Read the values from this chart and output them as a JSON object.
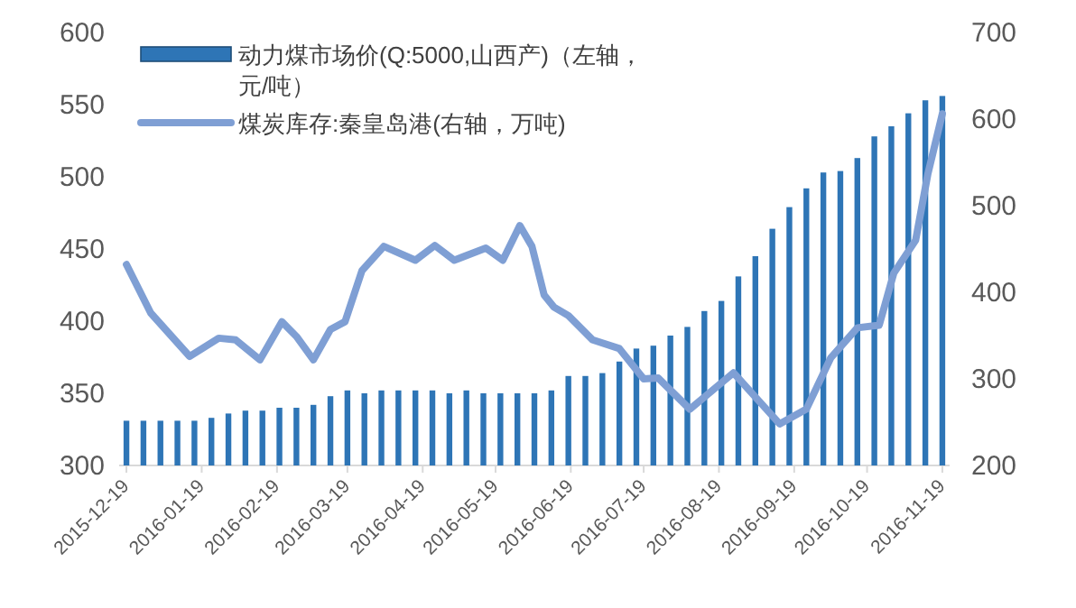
{
  "chart_data": {
    "type": "bar",
    "x": [
      "2015-12-19",
      "2015-12-26",
      "2016-01-02",
      "2016-01-09",
      "2016-01-16",
      "2016-01-23",
      "2016-01-30",
      "2016-02-06",
      "2016-02-13",
      "2016-02-20",
      "2016-02-27",
      "2016-03-05",
      "2016-03-12",
      "2016-03-19",
      "2016-03-26",
      "2016-04-02",
      "2016-04-09",
      "2016-04-16",
      "2016-04-23",
      "2016-04-30",
      "2016-05-07",
      "2016-05-14",
      "2016-05-21",
      "2016-05-28",
      "2016-06-04",
      "2016-06-11",
      "2016-06-18",
      "2016-06-25",
      "2016-07-02",
      "2016-07-09",
      "2016-07-16",
      "2016-07-23",
      "2016-07-30",
      "2016-08-06",
      "2016-08-13",
      "2016-08-20",
      "2016-08-27",
      "2016-09-03",
      "2016-09-10",
      "2016-09-17",
      "2016-09-24",
      "2016-10-01",
      "2016-10-08",
      "2016-10-15",
      "2016-10-22",
      "2016-10-29",
      "2016-11-05",
      "2016-11-12",
      "2016-11-19"
    ],
    "series": [
      {
        "name": "动力煤市场价(Q:5000,山西产)（左轴，元/吨）",
        "color": "#2e75b6",
        "values": [
          331,
          331,
          331,
          331,
          331,
          333,
          336,
          338,
          338,
          340,
          340,
          342,
          348,
          352,
          350,
          352,
          352,
          352,
          352,
          350,
          352,
          350,
          350,
          350,
          350,
          352,
          362,
          362,
          364,
          372,
          381,
          383,
          390,
          396,
          407,
          414,
          431,
          445,
          464,
          479,
          492,
          503,
          504,
          513,
          528,
          535,
          544,
          553,
          556
        ]
      },
      {
        "name": "煤炭库存:秦皇岛港(右轴，万吨)",
        "type": "line",
        "axis": "y2",
        "color": "#7f9fd4",
        "x": [
          "2015-12-19",
          "2015-12-29",
          "2016-01-14",
          "2016-01-26",
          "2016-02-02",
          "2016-02-12",
          "2016-02-21",
          "2016-02-27",
          "2016-03-05",
          "2016-03-12",
          "2016-03-18",
          "2016-03-25",
          "2016-04-03",
          "2016-04-16",
          "2016-04-24",
          "2016-05-02",
          "2016-05-15",
          "2016-05-22",
          "2016-05-29",
          "2016-06-03",
          "2016-06-08",
          "2016-06-12",
          "2016-06-18",
          "2016-06-28",
          "2016-07-09",
          "2016-07-19",
          "2016-07-25",
          "2016-08-07",
          "2016-08-25",
          "2016-09-03",
          "2016-09-13",
          "2016-09-24",
          "2016-10-04",
          "2016-10-15",
          "2016-10-24",
          "2016-10-30",
          "2016-11-08",
          "2016-11-13",
          "2016-11-19"
        ],
        "values": [
          432,
          376,
          326,
          347,
          345,
          322,
          366,
          349,
          322,
          357,
          366,
          425,
          453,
          437,
          454,
          437,
          451,
          437,
          477,
          453,
          397,
          383,
          373,
          345,
          335,
          300,
          301,
          265,
          307,
          279,
          248,
          265,
          324,
          359,
          362,
          422,
          460,
          536,
          606
        ]
      }
    ],
    "xlim": [
      "2015-12-16",
      "2016-11-22"
    ],
    "xticks": [
      {
        "value": "2015-12-19",
        "label": "2015-12-19"
      },
      {
        "value": "2016-01-19",
        "label": "2016-01-19"
      },
      {
        "value": "2016-02-19",
        "label": "2016-02-19"
      },
      {
        "value": "2016-03-19",
        "label": "2016-03-19"
      },
      {
        "value": "2016-04-19",
        "label": "2016-04-19"
      },
      {
        "value": "2016-05-19",
        "label": "2016-05-19"
      },
      {
        "value": "2016-06-19",
        "label": "2016-06-19"
      },
      {
        "value": "2016-07-19",
        "label": "2016-07-19"
      },
      {
        "value": "2016-08-19",
        "label": "2016-08-19"
      },
      {
        "value": "2016-09-19",
        "label": "2016-09-19"
      },
      {
        "value": "2016-10-19",
        "label": "2016-10-19"
      },
      {
        "value": "2016-11-19",
        "label": "2016-11-19"
      }
    ],
    "ylim": [
      300,
      600
    ],
    "yticks": [
      300,
      350,
      400,
      450,
      500,
      550,
      600
    ],
    "y2lim": [
      200,
      700
    ],
    "y2ticks": [
      200,
      300,
      400,
      500,
      600,
      700
    ],
    "legend": "top left"
  }
}
